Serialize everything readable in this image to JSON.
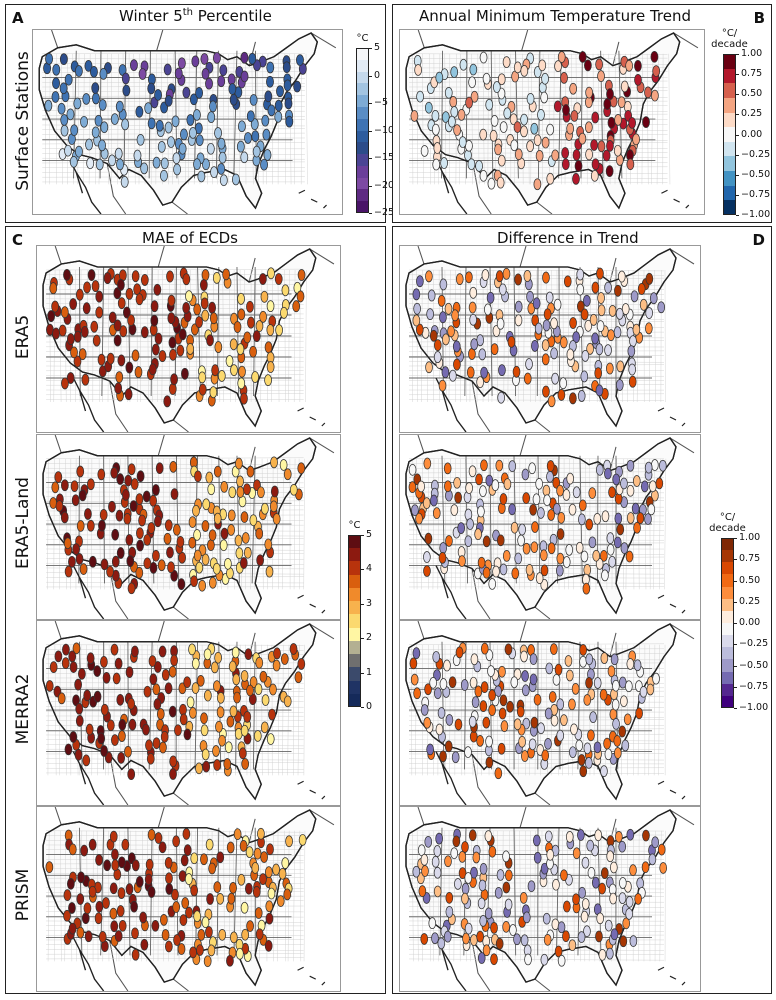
{
  "panels": {
    "A": {
      "letter": "A",
      "title": "Winter  5",
      "title_sup": "th",
      "title_end": " Percentile",
      "row_label": "Surface Stations"
    },
    "B": {
      "letter": "B",
      "title": "Annual Minimum Temperature Trend"
    },
    "C": {
      "letter": "C",
      "title": "MAE of ECDs",
      "rows": [
        "ERA5",
        "ERA5-Land",
        "MERRA2",
        "PRISM"
      ]
    },
    "D": {
      "letter": "D",
      "title": "Difference in Trend"
    }
  },
  "colorbars": {
    "winter": {
      "unit": "°C",
      "ticks": [
        "5",
        "0",
        "−5",
        "−10",
        "−15",
        "−20",
        "−25"
      ],
      "colors": [
        "#f5f6f8",
        "#e2ebf5",
        "#c5d9ec",
        "#a3c4e1",
        "#7eabd5",
        "#5a8dc5",
        "#3f73b3",
        "#2d5c9e",
        "#2c4c8a",
        "#4b4494",
        "#6b3f9a",
        "#7d4aa3",
        "#5e2a82",
        "#4a1468"
      ]
    },
    "trend": {
      "unit": "°C/\ndecade",
      "ticks": [
        "1.00",
        "0.75",
        "0.50",
        "0.25",
        "0.00",
        "−0.25",
        "−0.50",
        "−0.75",
        "−1.00"
      ],
      "colors": [
        "#6a0012",
        "#b2182b",
        "#d6604d",
        "#f4a582",
        "#fddbc7",
        "#f7f7f7",
        "#d1e5f0",
        "#92c5de",
        "#4393c3",
        "#2166ac",
        "#053061"
      ]
    },
    "mae": {
      "unit": "°C",
      "ticks": [
        "5",
        "4",
        "3",
        "2",
        "1",
        "0"
      ],
      "colors": [
        "#5e0d12",
        "#8c1a10",
        "#b8330c",
        "#d95f0e",
        "#f08a2b",
        "#f7b24d",
        "#fbd96f",
        "#fff6a3",
        "#b3b092",
        "#6f6f6f",
        "#3b4a6b",
        "#1f3364",
        "#152a5a"
      ]
    },
    "diff": {
      "unit": "°C/\ndecade",
      "ticks": [
        "1.00",
        "0.75",
        "0.50",
        "0.25",
        "0.00",
        "−0.25",
        "−0.50",
        "−0.75",
        "−1.00"
      ],
      "colors": [
        "#7f2704",
        "#a63603",
        "#d94801",
        "#f16913",
        "#fd8d3c",
        "#fdbe85",
        "#feedde",
        "#f7f7f7",
        "#dadaeb",
        "#bcbddc",
        "#9e9ac8",
        "#756bb1",
        "#54278f",
        "#3f007d"
      ]
    }
  }
}
